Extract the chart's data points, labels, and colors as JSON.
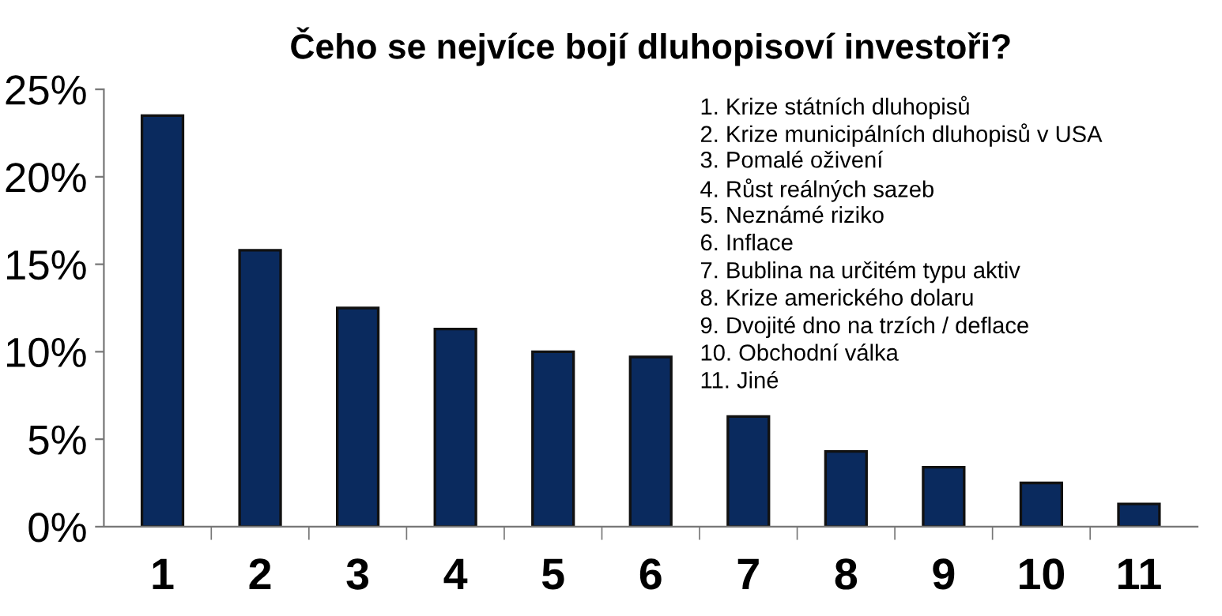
{
  "chart_data": {
    "type": "bar",
    "title": "Čeho se nejvíce bojí dluhopisoví investoři?",
    "categories": [
      "1",
      "2",
      "3",
      "4",
      "5",
      "6",
      "7",
      "8",
      "9",
      "10",
      "11"
    ],
    "values": [
      23.5,
      15.8,
      12.5,
      11.3,
      10.0,
      9.7,
      6.3,
      4.3,
      3.4,
      2.5,
      1.3
    ],
    "color": "#0a2a5e",
    "ylim": [
      0,
      25
    ],
    "yticks": [
      {
        "value": 0,
        "label": "0%"
      },
      {
        "value": 5,
        "label": "5%"
      },
      {
        "value": 10,
        "label": "10%"
      },
      {
        "value": 15,
        "label": "15%"
      },
      {
        "value": 20,
        "label": "20%"
      },
      {
        "value": 25,
        "label": "25%"
      }
    ],
    "grid": false,
    "annotations": [
      "1. Krize státních dluhopisů",
      "2. Krize municipálních dluhopisů v USA",
      "3. Pomalé oživení",
      "4. Růst reálných sazeb",
      "5. Neznámé riziko",
      "6. Inflace",
      "7. Bublina na určitém typu aktiv",
      "8. Krize amerického dolaru",
      "9. Dvojité dno na trzích / deflace",
      "10. Obchodní válka",
      "11. Jiné"
    ]
  }
}
